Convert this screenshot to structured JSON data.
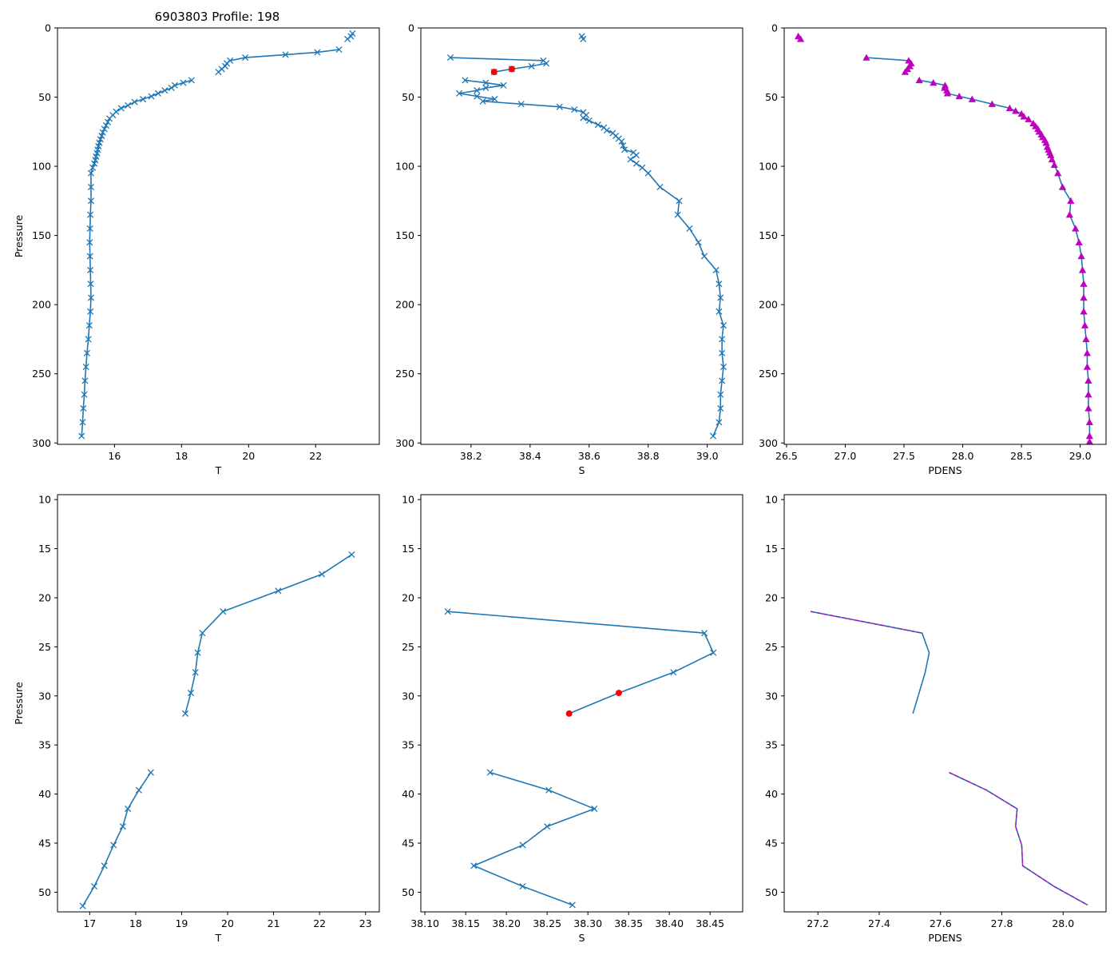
{
  "title": "6903803 Profile: 198",
  "colors": {
    "line": "#1f77b4",
    "flag": "#ff0000",
    "density_marker": "#bf00bf"
  },
  "chart_data": [
    {
      "id": "top-temperature",
      "type": "line",
      "xlabel": "T",
      "ylabel": "Pressure",
      "xlim": [
        14.3,
        23.9
      ],
      "ylim": [
        301,
        0
      ],
      "y_inverted": true,
      "xticks": [
        16,
        18,
        20,
        22
      ],
      "yticks": [
        0,
        50,
        100,
        150,
        200,
        250,
        300
      ],
      "xtick_labels": [
        "16",
        "18",
        "20",
        "22"
      ],
      "ytick_labels": [
        "0",
        "50",
        "100",
        "150",
        "200",
        "250",
        "300"
      ],
      "series": [
        {
          "name": "T profile upper",
          "marker": "x",
          "color": "#1f77b4",
          "x": [
            23.1,
            23.05,
            22.95
          ],
          "y": [
            4,
            6,
            8
          ]
        },
        {
          "name": "T profile",
          "marker": "x",
          "color": "#1f77b4",
          "x": [
            22.7,
            22.05,
            21.1,
            19.9,
            19.45,
            19.35,
            19.3,
            19.2,
            19.1
          ],
          "y": [
            15.6,
            17.6,
            19.3,
            21.4,
            23.6,
            25.6,
            27.6,
            29.7,
            31.8
          ]
        },
        {
          "name": "T profile lower",
          "marker": "x",
          "color": "#1f77b4",
          "x": [
            18.3,
            18.05,
            17.8,
            17.7,
            17.5,
            17.3,
            17.1,
            16.85,
            16.6,
            16.4,
            16.2,
            16.05,
            15.95,
            15.85,
            15.8,
            15.75,
            15.7,
            15.65,
            15.62,
            15.58,
            15.55,
            15.52,
            15.5,
            15.48,
            15.45,
            15.43,
            15.4,
            15.35,
            15.3,
            15.3,
            15.3,
            15.28,
            15.27,
            15.26,
            15.27,
            15.28,
            15.29,
            15.3,
            15.28,
            15.25,
            15.22,
            15.18,
            15.15,
            15.12,
            15.1,
            15.07,
            15.05,
            15.02
          ],
          "y": [
            37.8,
            39.6,
            41.5,
            43.3,
            45.2,
            47.3,
            49.4,
            51.5,
            53.5,
            56,
            58,
            60.5,
            63,
            65.5,
            68,
            70.5,
            73,
            75.5,
            78,
            80.5,
            83,
            85.5,
            88,
            90.5,
            93,
            95.5,
            98,
            101,
            105,
            115,
            125,
            135,
            145,
            155,
            165,
            175,
            185,
            195,
            205,
            215,
            225,
            235,
            245,
            255,
            265,
            275,
            285,
            295
          ]
        }
      ]
    },
    {
      "id": "top-salinity",
      "type": "line",
      "xlabel": "S",
      "ylabel": "",
      "xlim": [
        38.03,
        39.12
      ],
      "ylim": [
        301,
        0
      ],
      "y_inverted": true,
      "xticks": [
        38.2,
        38.4,
        38.6,
        38.8,
        39.0
      ],
      "yticks": [
        0,
        50,
        100,
        150,
        200,
        250,
        300
      ],
      "xtick_labels": [
        "38.2",
        "38.4",
        "38.6",
        "38.8",
        "39.0"
      ],
      "ytick_labels": [
        "0",
        "50",
        "100",
        "150",
        "200",
        "250",
        "300"
      ],
      "series": [
        {
          "name": "S profile upper",
          "marker": "x",
          "color": "#1f77b4",
          "x": [
            38.575,
            38.58
          ],
          "y": [
            6,
            8
          ]
        },
        {
          "name": "S profile",
          "marker": "x",
          "color": "#1f77b4",
          "x": [
            38.13,
            38.445,
            38.455,
            38.405,
            38.338,
            38.278
          ],
          "y": [
            21.4,
            23.6,
            25.6,
            27.6,
            29.7,
            31.8
          ]
        },
        {
          "name": "S profile lower",
          "marker": "x",
          "color": "#1f77b4",
          "x": [
            38.18,
            38.25,
            38.31,
            38.25,
            38.22,
            38.16,
            38.22,
            38.28,
            38.24,
            38.37,
            38.5,
            38.55,
            38.58,
            38.59,
            38.58,
            38.6,
            38.63,
            38.65,
            38.66,
            38.68,
            38.69,
            38.7,
            38.71,
            38.715,
            38.72,
            38.75,
            38.76,
            38.74,
            38.76,
            38.78,
            38.8,
            38.84,
            38.905,
            38.9,
            38.94,
            38.97,
            38.99,
            39.03,
            39.04,
            39.045,
            39.04,
            39.055,
            39.05,
            39.05,
            39.055,
            39.05,
            39.045,
            39.045,
            39.04,
            39.02
          ],
          "y": [
            37.8,
            39.6,
            41.5,
            43.3,
            45.2,
            47.3,
            49.4,
            51.4,
            53,
            55,
            57,
            59,
            61,
            63,
            65,
            67,
            70,
            72,
            74,
            76,
            78,
            80,
            82,
            85,
            88,
            90,
            92,
            95,
            98,
            101,
            105,
            115,
            125,
            135,
            145,
            155,
            165,
            175,
            185,
            195,
            205,
            215,
            225,
            235,
            245,
            255,
            265,
            275,
            285,
            295
          ]
        },
        {
          "name": "S flagged",
          "marker": "o",
          "color": "#ff0000",
          "line": false,
          "x": [
            38.338,
            38.278
          ],
          "y": [
            29.7,
            31.8
          ]
        }
      ]
    },
    {
      "id": "top-density",
      "type": "line",
      "xlabel": "PDENS",
      "ylabel": "",
      "xlim": [
        26.48,
        29.22
      ],
      "ylim": [
        301,
        0
      ],
      "y_inverted": true,
      "xticks": [
        26.5,
        27.0,
        27.5,
        28.0,
        28.5,
        29.0
      ],
      "yticks": [
        0,
        50,
        100,
        150,
        200,
        250,
        300
      ],
      "xtick_labels": [
        "26.5",
        "27.0",
        "27.5",
        "28.0",
        "28.5",
        "29.0"
      ],
      "ytick_labels": [
        "0",
        "50",
        "100",
        "150",
        "200",
        "250",
        "300"
      ],
      "series": [
        {
          "name": "PDENS upper",
          "marker": "^",
          "color": "#1f77b4",
          "marker_color": "#bf00bf",
          "x": [
            26.6,
            26.62
          ],
          "y": [
            6,
            8
          ]
        },
        {
          "name": "PDENS mid",
          "marker": "^",
          "color": "#1f77b4",
          "marker_color": "#bf00bf",
          "x": [
            27.18,
            27.54,
            27.56,
            27.55,
            27.53,
            27.51
          ],
          "y": [
            21.4,
            23.6,
            25.6,
            27.6,
            29.7,
            31.8
          ]
        },
        {
          "name": "PDENS lower",
          "marker": "^",
          "color": "#1f77b4",
          "marker_color": "#bf00bf",
          "x": [
            27.63,
            27.75,
            27.85,
            27.845,
            27.865,
            27.87,
            27.97,
            28.08,
            28.25,
            28.4,
            28.45,
            28.5,
            28.52,
            28.56,
            28.6,
            28.62,
            28.64,
            28.65,
            28.67,
            28.68,
            28.7,
            28.71,
            28.72,
            28.73,
            28.74,
            28.75,
            28.76,
            28.78,
            28.81,
            28.85,
            28.92,
            28.91,
            28.96,
            28.99,
            29.01,
            29.02,
            29.03,
            29.03,
            29.03,
            29.04,
            29.05,
            29.06,
            29.06,
            29.07,
            29.07,
            29.07,
            29.08,
            29.08,
            29.08,
            29.08
          ],
          "y": [
            37.8,
            39.6,
            41.5,
            43.3,
            45.2,
            47.3,
            49.4,
            51.5,
            55,
            58,
            60,
            62,
            64,
            66,
            69,
            71,
            73,
            75,
            77,
            79,
            81,
            83,
            86,
            88,
            90,
            92,
            95,
            99,
            105,
            115,
            125,
            135,
            145,
            155,
            165,
            175,
            185,
            195,
            205,
            215,
            225,
            235,
            245,
            255,
            265,
            275,
            285,
            295,
            299,
            300
          ]
        }
      ]
    },
    {
      "id": "bottom-temperature",
      "type": "line",
      "xlabel": "T",
      "ylabel": "Pressure",
      "xlim": [
        16.3,
        23.3
      ],
      "ylim": [
        52,
        9.5
      ],
      "y_inverted": true,
      "xticks": [
        17,
        18,
        19,
        20,
        21,
        22,
        23
      ],
      "yticks": [
        10,
        15,
        20,
        25,
        30,
        35,
        40,
        45,
        50
      ],
      "xtick_labels": [
        "17",
        "18",
        "19",
        "20",
        "21",
        "22",
        "23"
      ],
      "ytick_labels": [
        "10",
        "15",
        "20",
        "25",
        "30",
        "35",
        "40",
        "45",
        "50"
      ],
      "series": [
        {
          "name": "T zoom segment 1",
          "marker": "x",
          "color": "#1f77b4",
          "x": [
            22.7,
            22.05,
            21.1,
            19.9,
            19.45,
            19.35,
            19.3,
            19.2,
            19.08
          ],
          "y": [
            15.6,
            17.6,
            19.3,
            21.4,
            23.6,
            25.6,
            27.6,
            29.7,
            31.8
          ]
        },
        {
          "name": "T zoom segment 2",
          "marker": "x",
          "color": "#1f77b4",
          "x": [
            18.33,
            18.07,
            17.83,
            17.72,
            17.52,
            17.32,
            17.1,
            16.85
          ],
          "y": [
            37.8,
            39.6,
            41.5,
            43.3,
            45.2,
            47.3,
            49.4,
            51.4
          ]
        }
      ]
    },
    {
      "id": "bottom-salinity",
      "type": "line",
      "xlabel": "S",
      "ylabel": "",
      "xlim": [
        38.095,
        38.49
      ],
      "ylim": [
        52,
        9.5
      ],
      "y_inverted": true,
      "xticks": [
        38.1,
        38.15,
        38.2,
        38.25,
        38.3,
        38.35,
        38.4,
        38.45
      ],
      "yticks": [
        10,
        15,
        20,
        25,
        30,
        35,
        40,
        45,
        50
      ],
      "xtick_labels": [
        "38.10",
        "38.15",
        "38.20",
        "38.25",
        "38.30",
        "38.35",
        "38.40",
        "38.45"
      ],
      "ytick_labels": [
        "10",
        "15",
        "20",
        "25",
        "30",
        "35",
        "40",
        "45",
        "50"
      ],
      "series": [
        {
          "name": "S zoom segment 1",
          "marker": "x",
          "color": "#1f77b4",
          "x": [
            38.128,
            38.443,
            38.454,
            38.405
          ],
          "y": [
            21.4,
            23.6,
            25.6,
            27.6
          ]
        },
        {
          "name": "S zoom flagged line",
          "marker": "o",
          "color": "#1f77b4",
          "marker_color": "#ff0000",
          "x": [
            38.405,
            38.338,
            38.277
          ],
          "y": [
            27.6,
            29.7,
            31.8
          ],
          "skip_first_marker": true
        },
        {
          "name": "S zoom segment 2",
          "marker": "x",
          "color": "#1f77b4",
          "x": [
            38.18,
            38.252,
            38.308,
            38.25,
            38.22,
            38.16,
            38.22,
            38.281
          ],
          "y": [
            37.8,
            39.6,
            41.5,
            43.3,
            45.2,
            47.3,
            49.4,
            51.3
          ]
        }
      ]
    },
    {
      "id": "bottom-density",
      "type": "line",
      "xlabel": "PDENS",
      "ylabel": "",
      "xlim": [
        27.09,
        28.14
      ],
      "ylim": [
        52,
        9.5
      ],
      "y_inverted": true,
      "xticks": [
        27.2,
        27.4,
        27.6,
        27.8,
        28.0
      ],
      "yticks": [
        10,
        15,
        20,
        25,
        30,
        35,
        40,
        45,
        50
      ],
      "xtick_labels": [
        "27.2",
        "27.4",
        "27.6",
        "27.8",
        "28.0"
      ],
      "ytick_labels": [
        "10",
        "15",
        "20",
        "25",
        "30",
        "35",
        "40",
        "45",
        "50"
      ],
      "series": [
        {
          "name": "PDENS zoom upper",
          "marker": "none",
          "color": "#1f77b4",
          "dash_color": "#bf00bf",
          "dash_until": 1,
          "x": [
            27.176,
            27.54,
            27.563,
            27.55,
            27.53,
            27.51
          ],
          "y": [
            21.4,
            23.6,
            25.6,
            27.6,
            29.7,
            31.8
          ]
        },
        {
          "name": "PDENS zoom lower",
          "marker": "none",
          "color": "#1f77b4",
          "dash_color": "#bf00bf",
          "dash_until": 99,
          "x": [
            27.628,
            27.75,
            27.85,
            27.845,
            27.865,
            27.868,
            27.97,
            28.08
          ],
          "y": [
            37.8,
            39.6,
            41.5,
            43.3,
            45.2,
            47.3,
            49.4,
            51.3
          ]
        }
      ]
    }
  ]
}
